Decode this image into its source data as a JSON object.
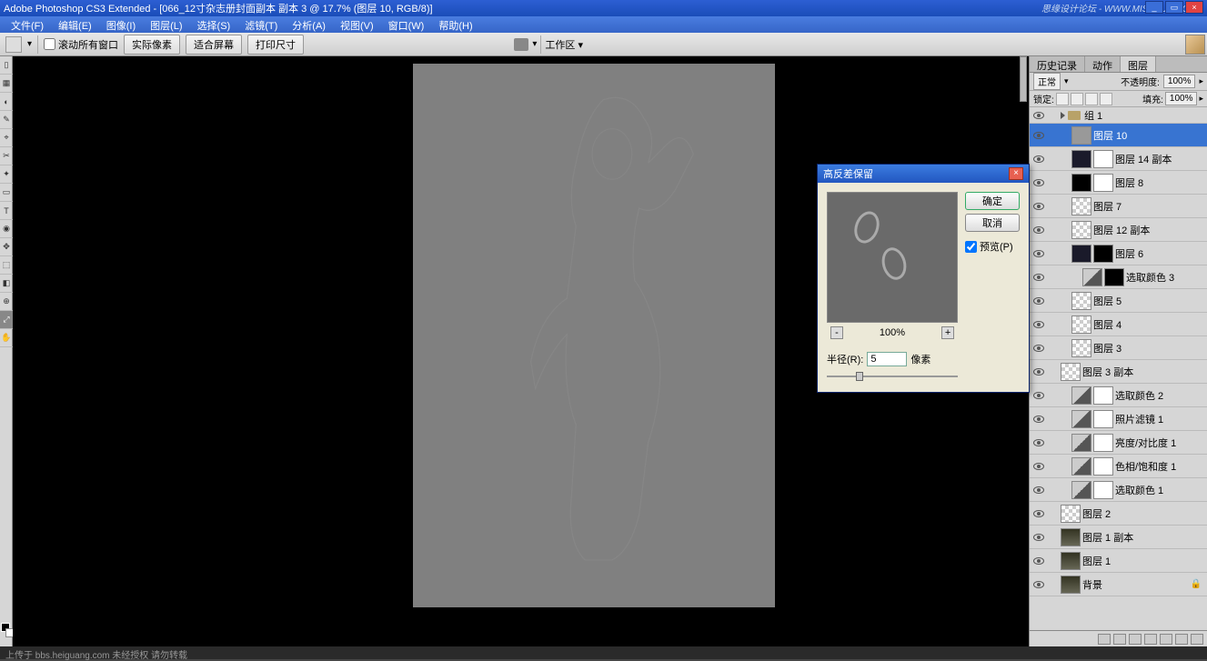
{
  "app": {
    "title": "Adobe Photoshop CS3 Extended - [066_12寸杂志册封面副本 副本 3 @ 17.7% (图层 10, RGB/8)]",
    "watermark_right": "思缘设计论坛 - WWW.MISSYUAN.COM"
  },
  "menu": [
    "文件(F)",
    "编辑(E)",
    "图像(I)",
    "图层(L)",
    "选择(S)",
    "滤镜(T)",
    "分析(A)",
    "视图(V)",
    "窗口(W)",
    "帮助(H)"
  ],
  "options": {
    "scroll_all": "滚动所有窗口",
    "btn1": "实际像素",
    "btn2": "适合屏幕",
    "btn3": "打印尺寸",
    "workspace": "工作区 ▾"
  },
  "panels": {
    "tabs": [
      "历史记录",
      "动作",
      "图层"
    ],
    "active_tab": 2,
    "blend_mode": "正常",
    "opacity_label": "不透明度:",
    "opacity": "100%",
    "lock_label": "锁定:",
    "fill_label": "填充:",
    "fill": "100%",
    "group_name": "组 1",
    "layers": [
      {
        "name": "图层 10",
        "selected": true,
        "thumb": "gray",
        "indent": 1
      },
      {
        "name": "图层 14 副本",
        "thumb": "dark",
        "mask": true,
        "indent": 1
      },
      {
        "name": "图层 8",
        "thumb": "black",
        "mask": true,
        "indent": 1
      },
      {
        "name": "图层 7",
        "thumb": "checker",
        "indent": 1
      },
      {
        "name": "图层 12 副本",
        "thumb": "checker",
        "indent": 1
      },
      {
        "name": "图层 6",
        "thumb": "dark",
        "mask": "black",
        "indent": 1
      },
      {
        "name": "选取颜色 3",
        "thumb": "adj",
        "mask": "black",
        "indent": 2
      },
      {
        "name": "图层 5",
        "thumb": "checker",
        "indent": 1
      },
      {
        "name": "图层 4",
        "thumb": "checker",
        "indent": 1
      },
      {
        "name": "图层 3",
        "thumb": "checker",
        "indent": 1
      },
      {
        "name": "图层 3 副本",
        "thumb": "checker",
        "indent": 0
      },
      {
        "name": "选取颜色 2",
        "thumb": "adj",
        "mask": true,
        "indent": 1
      },
      {
        "name": "照片滤镜 1",
        "thumb": "adj",
        "mask": true,
        "indent": 1
      },
      {
        "name": "亮度/对比度 1",
        "thumb": "adj",
        "mask": true,
        "indent": 1
      },
      {
        "name": "色相/饱和度 1",
        "thumb": "adj",
        "mask": true,
        "indent": 1
      },
      {
        "name": "选取颜色 1",
        "thumb": "adj",
        "mask": true,
        "indent": 1
      },
      {
        "name": "图层 2",
        "thumb": "checker",
        "indent": 0
      },
      {
        "name": "图层 1 副本",
        "thumb": "img1",
        "indent": 0
      },
      {
        "name": "图层 1",
        "thumb": "img1",
        "indent": 0
      },
      {
        "name": "背景",
        "thumb": "img1",
        "locked": true,
        "indent": 0
      }
    ]
  },
  "dialog": {
    "title": "高反差保留",
    "ok": "确定",
    "cancel": "取消",
    "preview_chk": "预览(P)",
    "zoom": "100%",
    "radius_label": "半径(R):",
    "radius_value": "5",
    "radius_unit": "像素"
  },
  "status": "上传于 bbs.heiguang.com  未经授权  请勿转载",
  "canvas": {
    "bg": "#000000",
    "doc_bg": "#808080",
    "doc_w": 398,
    "doc_h": 598
  },
  "colors": {
    "title_grad_a": "#2d5fd3",
    "title_grad_b": "#1a4db8",
    "panel_bg": "#d6d6d6",
    "selected": "#3874d1",
    "dialog_bg": "#ece9d8"
  }
}
